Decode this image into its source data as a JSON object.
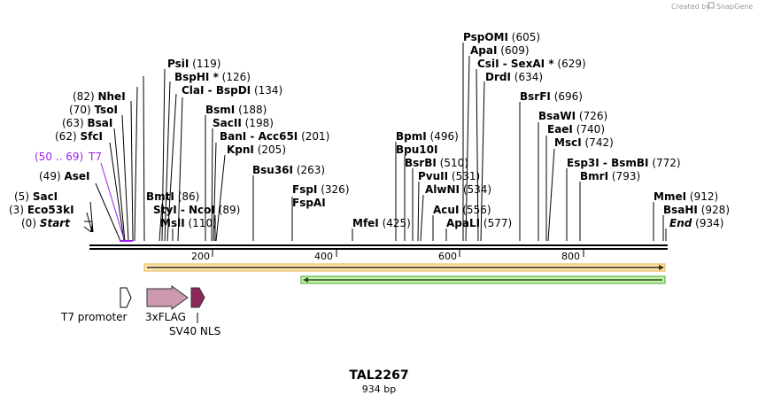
{
  "credit": {
    "text": "Created by",
    "brand": "SnapGene"
  },
  "plasmid": {
    "name": "TAL2267",
    "length": "934 bp"
  },
  "sites": [
    {
      "name": "Start",
      "pos": "(0)",
      "italic": true
    },
    {
      "name": "Eco53kI",
      "pos": "(3)"
    },
    {
      "name": "SacI",
      "pos": "(5)"
    },
    {
      "name": "AseI",
      "pos": "(49)"
    },
    {
      "name": "SfcI",
      "pos": "(62)"
    },
    {
      "name": "BsaI",
      "pos": "(63)"
    },
    {
      "name": "TsoI",
      "pos": "(70)"
    },
    {
      "name": "NheI",
      "pos": "(82)"
    },
    {
      "name": "BmtI",
      "pos": "(86)"
    },
    {
      "name": "StyI - NcoI",
      "pos": "(89)"
    },
    {
      "name": "MslI",
      "pos": "(110)"
    },
    {
      "name": "PsiI",
      "pos": "(119)"
    },
    {
      "name": "BspHI *",
      "pos": "(126)"
    },
    {
      "name": "ClaI - BspDI",
      "pos": "(134)"
    },
    {
      "name": "BsmI",
      "pos": "(188)"
    },
    {
      "name": "SacII",
      "pos": "(198)"
    },
    {
      "name": "BanI - Acc65I",
      "pos": "(201)"
    },
    {
      "name": "KpnI",
      "pos": "(205)"
    },
    {
      "name": "Bsu36I",
      "pos": "(263)"
    },
    {
      "name": "FspI",
      "pos": "(326)"
    },
    {
      "name": "FspAI",
      "pos": ""
    },
    {
      "name": "MfeI",
      "pos": "(425)"
    },
    {
      "name": "BpmI",
      "pos": "(496)"
    },
    {
      "name": "Bpu10I",
      "pos": ""
    },
    {
      "name": "BsrBI",
      "pos": "(510)"
    },
    {
      "name": "PvuII",
      "pos": "(531)"
    },
    {
      "name": "AlwNI",
      "pos": "(534)"
    },
    {
      "name": "AcuI",
      "pos": "(556)"
    },
    {
      "name": "ApaLI",
      "pos": "(577)"
    },
    {
      "name": "PspOMI",
      "pos": "(605)"
    },
    {
      "name": "ApaI",
      "pos": "(609)"
    },
    {
      "name": "CsiI - SexAI *",
      "pos": "(629)"
    },
    {
      "name": "DrdI",
      "pos": "(634)"
    },
    {
      "name": "BsrFI",
      "pos": "(696)"
    },
    {
      "name": "BsaWI",
      "pos": "(726)"
    },
    {
      "name": "EaeI",
      "pos": "(740)"
    },
    {
      "name": "MscI",
      "pos": "(742)"
    },
    {
      "name": "Esp3I - BsmBI",
      "pos": "(772)"
    },
    {
      "name": "BmrI",
      "pos": "(793)"
    },
    {
      "name": "MmeI",
      "pos": "(912)"
    },
    {
      "name": "BsaHI",
      "pos": "(928)"
    },
    {
      "name": "End",
      "pos": "(934)",
      "italic": true
    }
  ],
  "primer": {
    "range": "(50 .. 69)",
    "name": "T7",
    "color": "#a020f0"
  },
  "axis": {
    "ticks": [
      "200",
      "400",
      "600",
      "800"
    ]
  },
  "features": [
    {
      "name": "T7 promoter"
    },
    {
      "name": "3xFLAG",
      "color": "#cc99b0"
    },
    {
      "name": "SV40 NLS",
      "color": "#8b2a5a"
    }
  ],
  "orfs": {
    "forward_color": "#e8b040",
    "reverse_color": "#3fae28"
  },
  "colors": {
    "accent_purple": "#a020f0",
    "credit_gray": "#9a9a9a"
  }
}
